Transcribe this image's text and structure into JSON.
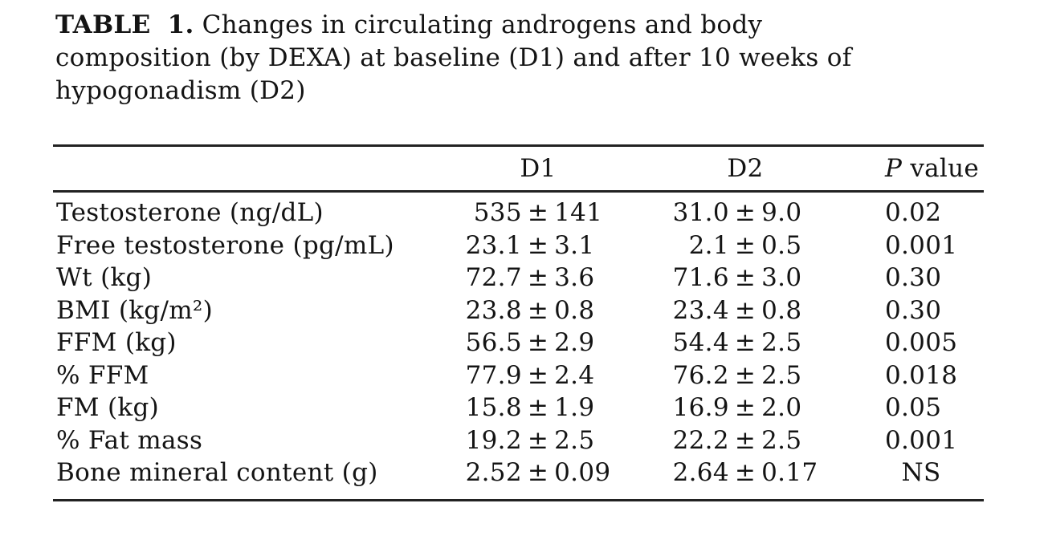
{
  "caption": {
    "prefix": "TABLE 1.",
    "line1_rest": "Changes in circulating androgens and body",
    "line2": "composition (by DEXA) at baseline (D1) and after 10 weeks of",
    "line3": "hypogonadism (D2)"
  },
  "table": {
    "pm_symbol": "±",
    "columns": {
      "label": "",
      "d1": "D1",
      "d2": "D2",
      "p_italic": "P",
      "p_rest": " value"
    },
    "rows": [
      {
        "label": "Testosterone (ng/dL)",
        "d1_mean": "535",
        "d1_sd": "141",
        "d2_mean": "31.0",
        "d2_sd": "9.0",
        "p": "0.02"
      },
      {
        "label": "Free testosterone (pg/mL)",
        "d1_mean": "23.1",
        "d1_sd": "3.1",
        "d2_mean": "2.1",
        "d2_sd": "0.5",
        "p": "0.001"
      },
      {
        "label": "Wt (kg)",
        "d1_mean": "72.7",
        "d1_sd": "3.6",
        "d2_mean": "71.6",
        "d2_sd": "3.0",
        "p": "0.30"
      },
      {
        "label": "BMI (kg/m²)",
        "d1_mean": "23.8",
        "d1_sd": "0.8",
        "d2_mean": "23.4",
        "d2_sd": "0.8",
        "p": "0.30"
      },
      {
        "label": "FFM (kg)",
        "d1_mean": "56.5",
        "d1_sd": "2.9",
        "d2_mean": "54.4",
        "d2_sd": "2.5",
        "p": "0.005"
      },
      {
        "label": "% FFM",
        "d1_mean": "77.9",
        "d1_sd": "2.4",
        "d2_mean": "76.2",
        "d2_sd": "2.5",
        "p": "0.018"
      },
      {
        "label": "FM (kg)",
        "d1_mean": "15.8",
        "d1_sd": "1.9",
        "d2_mean": "16.9",
        "d2_sd": "2.0",
        "p": "0.05"
      },
      {
        "label": "% Fat mass",
        "d1_mean": "19.2",
        "d1_sd": "2.5",
        "d2_mean": "22.2",
        "d2_sd": "2.5",
        "p": "0.001"
      },
      {
        "label": "Bone mineral content (g)",
        "d1_mean": "2.52",
        "d1_sd": "0.09",
        "d2_mean": "2.64",
        "d2_sd": "0.17",
        "p": "NS"
      }
    ]
  }
}
